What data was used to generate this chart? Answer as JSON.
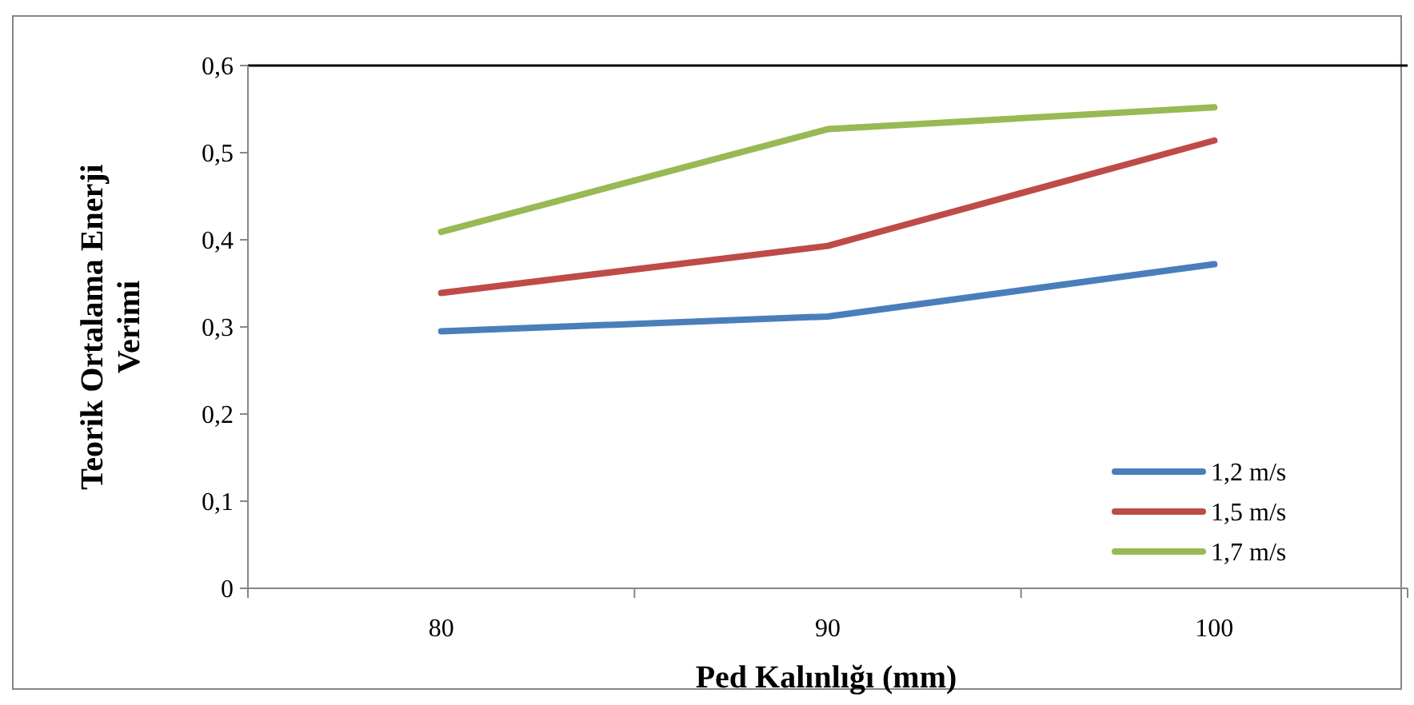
{
  "chart_data": {
    "type": "line",
    "xlabel": "Ped Kalınlığı (mm)",
    "ylabel": "Teorik Ortalama Enerji Verimi",
    "categories": [
      "80",
      "90",
      "100"
    ],
    "ylim": [
      0,
      0.6
    ],
    "yticks": [
      0,
      {
        "value": 0.1,
        "label": "0,1"
      },
      {
        "value": 0.2,
        "label": "0,2"
      },
      {
        "value": 0.3,
        "label": "0,3"
      },
      {
        "value": 0.4,
        "label": "0,4"
      },
      {
        "value": 0.5,
        "label": "0,5"
      },
      {
        "value": 0.6,
        "label": "0,6"
      }
    ],
    "grid": false,
    "legend": "bottom right",
    "marker": "none",
    "line_style": "solid",
    "series": [
      {
        "name": "1,2 m/s",
        "color": "#4a7ebb",
        "values": [
          0.295,
          0.312,
          0.372
        ]
      },
      {
        "name": "1,5 m/s",
        "color": "#be4b48",
        "values": [
          0.339,
          0.393,
          0.514
        ]
      },
      {
        "name": "1,7 m/s",
        "color": "#98b954",
        "values": [
          0.409,
          0.527,
          0.552
        ]
      }
    ]
  }
}
